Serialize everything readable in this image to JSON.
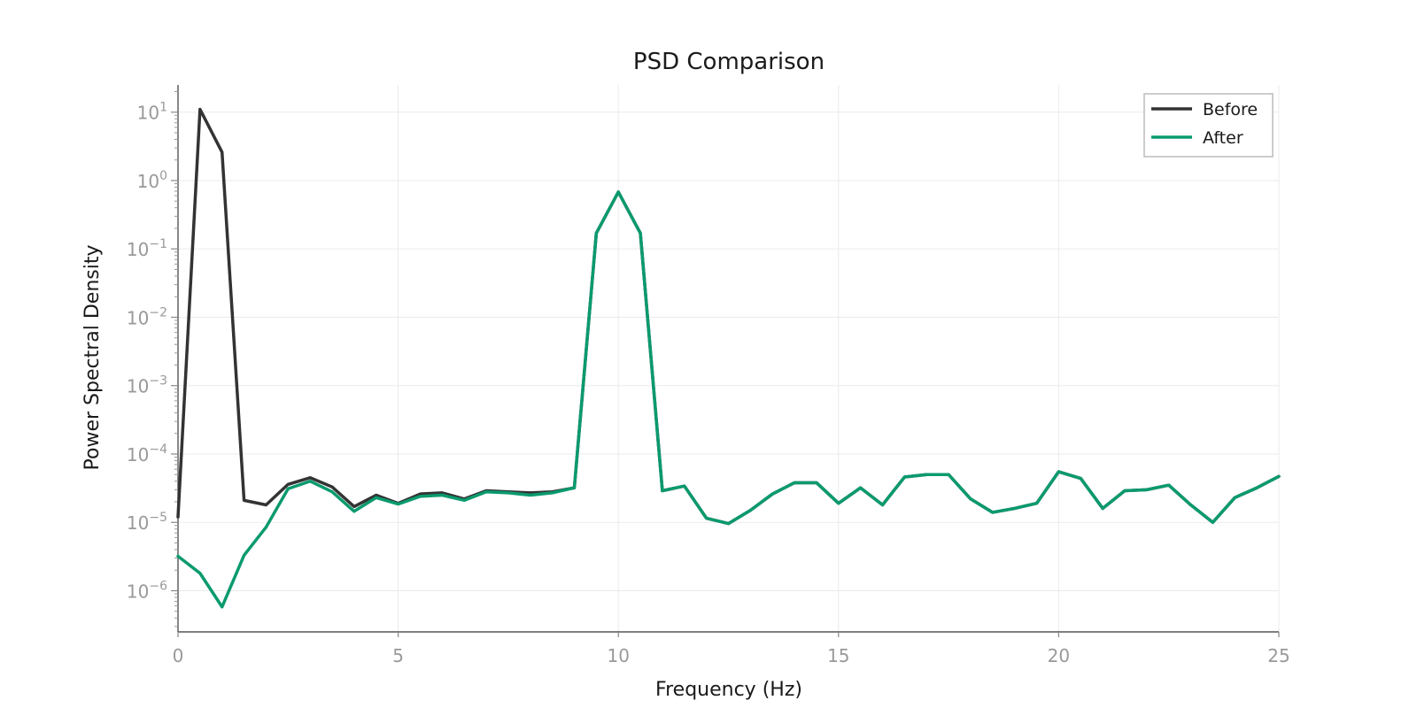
{
  "chart_data": {
    "type": "line",
    "title": "PSD Comparison",
    "xlabel": "Frequency (Hz)",
    "ylabel": "Power Spectral Density",
    "xlim": [
      0,
      25
    ],
    "ylim": [
      2.5e-07,
      25
    ],
    "yscale": "log",
    "grid": true,
    "legend_position": "top-right",
    "x_ticks": [
      0,
      5,
      10,
      15,
      20,
      25
    ],
    "y_ticks": [
      {
        "base": "10",
        "exp": "1",
        "value": 10
      },
      {
        "base": "10",
        "exp": "0",
        "value": 1
      },
      {
        "base": "10",
        "exp": "−1",
        "value": 0.1
      },
      {
        "base": "10",
        "exp": "−2",
        "value": 0.01
      },
      {
        "base": "10",
        "exp": "−3",
        "value": 0.001
      },
      {
        "base": "10",
        "exp": "−4",
        "value": 0.0001
      },
      {
        "base": "10",
        "exp": "−5",
        "value": 1e-05
      },
      {
        "base": "10",
        "exp": "−6",
        "value": 1e-06
      }
    ],
    "x": [
      0,
      0.5,
      1,
      1.5,
      2,
      2.5,
      3,
      3.5,
      4,
      4.5,
      5,
      5.5,
      6,
      6.5,
      7,
      7.5,
      8,
      8.5,
      9,
      9.5,
      10,
      10.5,
      11,
      11.5,
      12,
      12.5,
      13,
      13.5,
      14,
      14.5,
      15,
      15.5,
      16,
      16.5,
      17,
      17.5,
      18,
      18.5,
      19,
      19.5,
      20,
      20.5,
      21,
      21.5,
      22,
      22.5,
      23,
      23.5,
      24,
      24.5,
      25
    ],
    "series": [
      {
        "name": "Before",
        "color": "#333333",
        "values": [
          1.2e-05,
          11,
          2.6,
          2.1e-05,
          1.8e-05,
          3.6e-05,
          4.5e-05,
          3.3e-05,
          1.7e-05,
          2.5e-05,
          1.9e-05,
          2.6e-05,
          2.7e-05,
          2.2e-05,
          2.9e-05,
          2.8e-05,
          2.7e-05,
          2.8e-05,
          3.2e-05,
          0.17,
          0.68,
          0.17,
          2.9e-05,
          3.4e-05,
          1.15e-05,
          9.6e-06,
          1.5e-05,
          2.6e-05,
          3.8e-05,
          3.8e-05,
          1.9e-05,
          3.2e-05,
          1.8e-05,
          4.6e-05,
          5e-05,
          5e-05,
          2.2e-05,
          1.4e-05,
          1.6e-05,
          1.9e-05,
          5.5e-05,
          4.4e-05,
          1.6e-05,
          2.9e-05,
          3e-05,
          3.5e-05,
          1.8e-05,
          1e-05,
          2.3e-05,
          3.2e-05,
          4.7e-05
        ]
      },
      {
        "name": "After",
        "color": "#0a9a6e",
        "values": [
          3.2e-06,
          1.8e-06,
          5.8e-07,
          3.3e-06,
          8.5e-06,
          3.1e-05,
          4e-05,
          2.8e-05,
          1.45e-05,
          2.3e-05,
          1.85e-05,
          2.4e-05,
          2.5e-05,
          2.1e-05,
          2.8e-05,
          2.7e-05,
          2.5e-05,
          2.7e-05,
          3.2e-05,
          0.17,
          0.68,
          0.17,
          2.9e-05,
          3.4e-05,
          1.15e-05,
          9.6e-06,
          1.5e-05,
          2.6e-05,
          3.8e-05,
          3.8e-05,
          1.9e-05,
          3.2e-05,
          1.8e-05,
          4.6e-05,
          5e-05,
          5e-05,
          2.2e-05,
          1.4e-05,
          1.6e-05,
          1.9e-05,
          5.5e-05,
          4.4e-05,
          1.6e-05,
          2.9e-05,
          3e-05,
          3.5e-05,
          1.8e-05,
          1e-05,
          2.3e-05,
          3.2e-05,
          4.7e-05
        ]
      }
    ]
  }
}
